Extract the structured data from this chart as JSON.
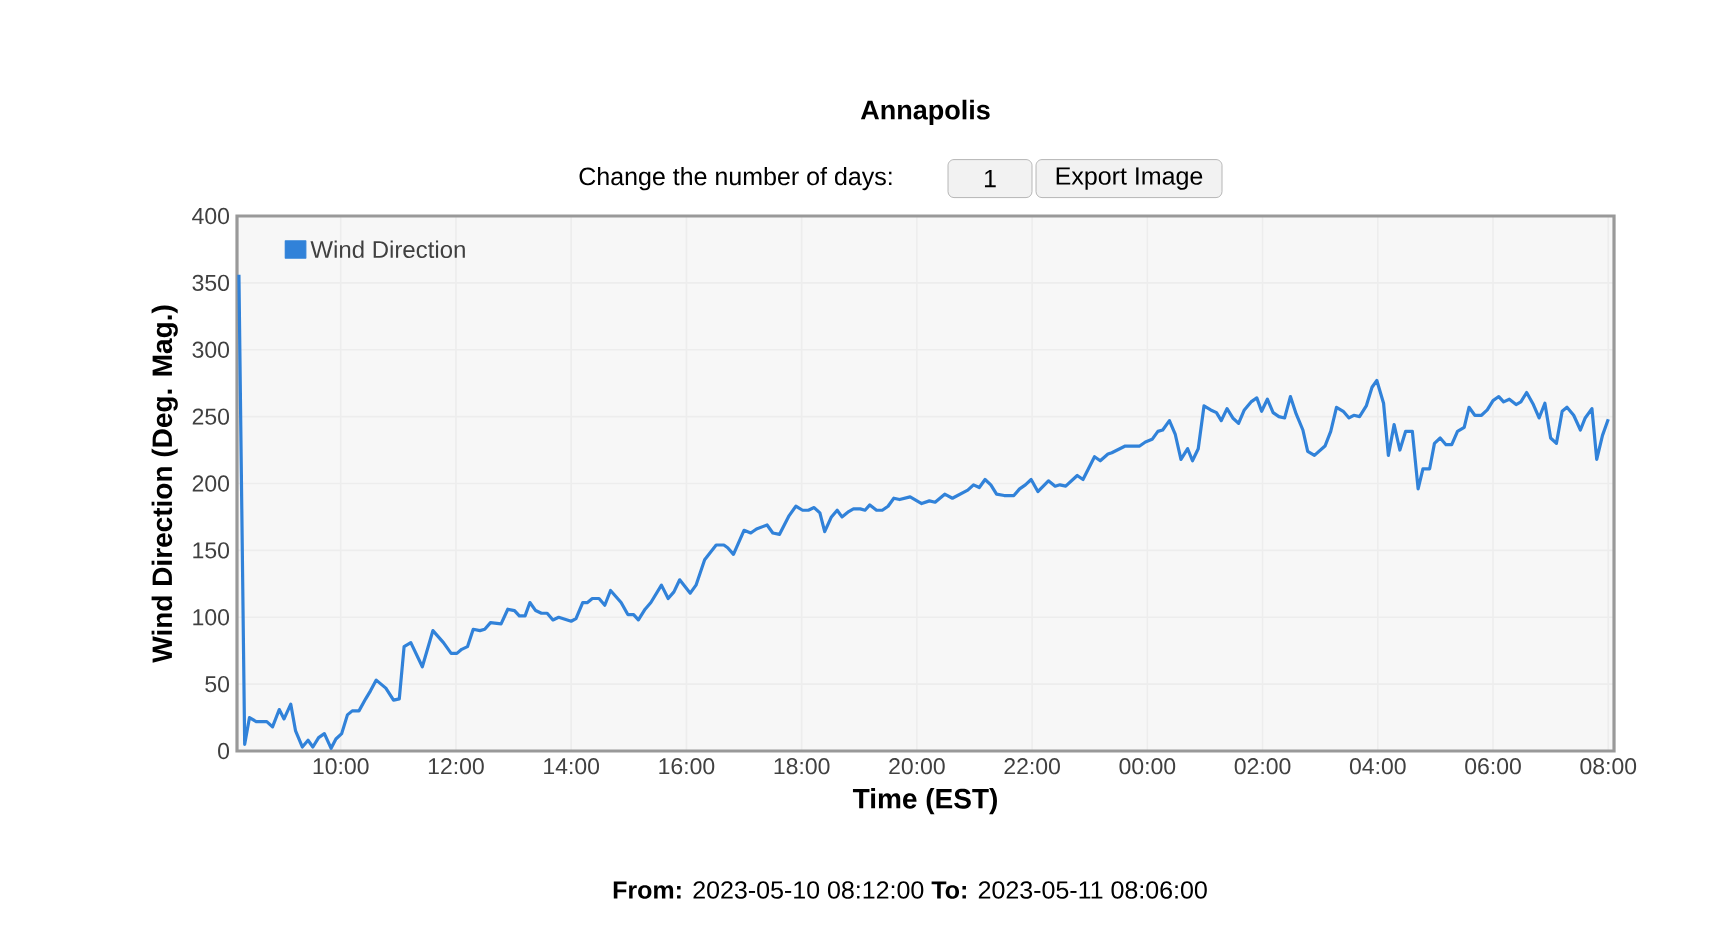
{
  "chart_data": {
    "type": "line",
    "title": "Annapolis",
    "xlabel": "Time (EST)",
    "ylabel": "Wind Direction (Deg. Mag.)",
    "annotations": [
      "Change the number of days:",
      "1",
      "Export Image",
      "**From:** 2023-05-10 08:12:00 **To:** 2023-05-11 08:06:00"
    ],
    "x": [
      "2023-05-10T08:14",
      "2023-05-10T08:20",
      "2023-05-10T08:25",
      "2023-05-10T08:32",
      "2023-05-10T08:43",
      "2023-05-10T08:49",
      "2023-05-10T08:56",
      "2023-05-10T09:01",
      "2023-05-10T09:08",
      "2023-05-10T09:13",
      "2023-05-10T09:20",
      "2023-05-10T09:26",
      "2023-05-10T09:31",
      "2023-05-10T09:37",
      "2023-05-10T09:43",
      "2023-05-10T09:50",
      "2023-05-10T09:55",
      "2023-05-10T10:01",
      "2023-05-10T10:07",
      "2023-05-10T10:12",
      "2023-05-10T10:19",
      "2023-05-10T10:26",
      "2023-05-10T10:31",
      "2023-05-10T10:37",
      "2023-05-10T10:47",
      "2023-05-10T10:55",
      "2023-05-10T11:01",
      "2023-05-10T11:06",
      "2023-05-10T11:13",
      "2023-05-10T11:25",
      "2023-05-10T11:36",
      "2023-05-10T11:47",
      "2023-05-10T11:55",
      "2023-05-10T12:01",
      "2023-05-10T12:06",
      "2023-05-10T12:12",
      "2023-05-10T12:18",
      "2023-05-10T12:25",
      "2023-05-10T12:30",
      "2023-05-10T12:36",
      "2023-05-10T12:47",
      "2023-05-10T12:54",
      "2023-05-10T13:01",
      "2023-05-10T13:06",
      "2023-05-10T13:12",
      "2023-05-10T13:17",
      "2023-05-10T13:23",
      "2023-05-10T13:29",
      "2023-05-10T13:35",
      "2023-05-10T13:41",
      "2023-05-10T13:47",
      "2023-05-10T14:00",
      "2023-05-10T14:05",
      "2023-05-10T14:12",
      "2023-05-10T14:17",
      "2023-05-10T14:22",
      "2023-05-10T14:29",
      "2023-05-10T14:35",
      "2023-05-10T14:41",
      "2023-05-10T14:52",
      "2023-05-10T14:59",
      "2023-05-10T15:05",
      "2023-05-10T15:10",
      "2023-05-10T15:17",
      "2023-05-10T15:23",
      "2023-05-10T15:34",
      "2023-05-10T15:41",
      "2023-05-10T15:47",
      "2023-05-10T15:53",
      "2023-05-10T16:04",
      "2023-05-10T16:10",
      "2023-05-10T16:19",
      "2023-05-10T16:31",
      "2023-05-10T16:39",
      "2023-05-10T16:43",
      "2023-05-10T16:49",
      "2023-05-10T17:00",
      "2023-05-10T17:07",
      "2023-05-10T17:13",
      "2023-05-10T17:24",
      "2023-05-10T17:30",
      "2023-05-10T17:37",
      "2023-05-10T17:47",
      "2023-05-10T17:54",
      "2023-05-10T18:01",
      "2023-05-10T18:07",
      "2023-05-10T18:13",
      "2023-05-10T18:19",
      "2023-05-10T18:24",
      "2023-05-10T18:31",
      "2023-05-10T18:37",
      "2023-05-10T18:42",
      "2023-05-10T18:49",
      "2023-05-10T18:54",
      "2023-05-10T19:01",
      "2023-05-10T19:06",
      "2023-05-10T19:11",
      "2023-05-10T19:18",
      "2023-05-10T19:24",
      "2023-05-10T19:30",
      "2023-05-10T19:36",
      "2023-05-10T19:42",
      "2023-05-10T19:53",
      "2023-05-10T20:05",
      "2023-05-10T20:13",
      "2023-05-10T20:19",
      "2023-05-10T20:29",
      "2023-05-10T20:37",
      "2023-05-10T20:53",
      "2023-05-10T20:59",
      "2023-05-10T21:05",
      "2023-05-10T21:11",
      "2023-05-10T21:17",
      "2023-05-10T21:23",
      "2023-05-10T21:31",
      "2023-05-10T21:41",
      "2023-05-10T21:47",
      "2023-05-10T21:53",
      "2023-05-10T21:59",
      "2023-05-10T22:06",
      "2023-05-10T22:17",
      "2023-05-10T22:24",
      "2023-05-10T22:29",
      "2023-05-10T22:35",
      "2023-05-10T22:47",
      "2023-05-10T22:53",
      "2023-05-10T23:05",
      "2023-05-10T23:11",
      "2023-05-10T23:19",
      "2023-05-10T23:23",
      "2023-05-10T23:37",
      "2023-05-10T23:52",
      "2023-05-10T23:58",
      "2023-05-11T00:05",
      "2023-05-11T00:11",
      "2023-05-11T00:16",
      "2023-05-11T00:23",
      "2023-05-11T00:29",
      "2023-05-11T00:35",
      "2023-05-11T00:42",
      "2023-05-11T00:47",
      "2023-05-11T00:53",
      "2023-05-11T00:59",
      "2023-05-11T01:06",
      "2023-05-11T01:12",
      "2023-05-11T01:17",
      "2023-05-11T01:23",
      "2023-05-11T01:29",
      "2023-05-11T01:35",
      "2023-05-11T01:41",
      "2023-05-11T01:48",
      "2023-05-11T01:54",
      "2023-05-11T01:59",
      "2023-05-11T02:05",
      "2023-05-11T02:11",
      "2023-05-11T02:17",
      "2023-05-11T02:23",
      "2023-05-11T02:29",
      "2023-05-11T02:35",
      "2023-05-11T02:42",
      "2023-05-11T02:47",
      "2023-05-11T02:54",
      "2023-05-11T03:05",
      "2023-05-11T03:11",
      "2023-05-11T03:17",
      "2023-05-11T03:24",
      "2023-05-11T03:30",
      "2023-05-11T03:35",
      "2023-05-11T03:41",
      "2023-05-11T03:48",
      "2023-05-11T03:54",
      "2023-05-11T03:59",
      "2023-05-11T04:06",
      "2023-05-11T04:11",
      "2023-05-11T04:17",
      "2023-05-11T04:23",
      "2023-05-11T04:29",
      "2023-05-11T04:36",
      "2023-05-11T04:42",
      "2023-05-11T04:47",
      "2023-05-11T04:54",
      "2023-05-11T04:59",
      "2023-05-11T05:05",
      "2023-05-11T05:11",
      "2023-05-11T05:17",
      "2023-05-11T05:23",
      "2023-05-11T05:30",
      "2023-05-11T05:35",
      "2023-05-11T05:41",
      "2023-05-11T05:48",
      "2023-05-11T05:54",
      "2023-05-11T06:00",
      "2023-05-11T06:06",
      "2023-05-11T06:11",
      "2023-05-11T06:17",
      "2023-05-11T06:24",
      "2023-05-11T06:29",
      "2023-05-11T06:35",
      "2023-05-11T06:42",
      "2023-05-11T06:48",
      "2023-05-11T06:54",
      "2023-05-11T07:00",
      "2023-05-11T07:06",
      "2023-05-11T07:12",
      "2023-05-11T07:17",
      "2023-05-11T07:24",
      "2023-05-11T07:31",
      "2023-05-11T07:36",
      "2023-05-11T07:43",
      "2023-05-11T07:48",
      "2023-05-11T07:54",
      "2023-05-11T08:00"
    ],
    "series": [
      {
        "name": "Wind Direction",
        "color": "#3182d9",
        "values": [
          356,
          5,
          25,
          22,
          22,
          18,
          31,
          24,
          35,
          15,
          3,
          8,
          3,
          10,
          13,
          2,
          9,
          13,
          27,
          30,
          30,
          39,
          45,
          53,
          47,
          38,
          39,
          78,
          81,
          63,
          90,
          81,
          73,
          73,
          76,
          78,
          91,
          90,
          91,
          96,
          95,
          106,
          105,
          101,
          101,
          111,
          105,
          103,
          103,
          98,
          100,
          97,
          99,
          111,
          111,
          114,
          114,
          109,
          120,
          111,
          102,
          102,
          98,
          106,
          111,
          124,
          114,
          119,
          128,
          118,
          124,
          143,
          154,
          154,
          152,
          147,
          165,
          163,
          166,
          169,
          163,
          162,
          176,
          183,
          180,
          180,
          182,
          178,
          164,
          175,
          180,
          175,
          179,
          181,
          181,
          180,
          184,
          180,
          180,
          183,
          189,
          188,
          190,
          185,
          187,
          186,
          192,
          189,
          195,
          199,
          197,
          203,
          199,
          192,
          191,
          191,
          196,
          199,
          203,
          194,
          202,
          198,
          199,
          198,
          206,
          203,
          220,
          217,
          222,
          223,
          228,
          228,
          231,
          233,
          239,
          240,
          247,
          237,
          218,
          226,
          217,
          226,
          258,
          255,
          253,
          247,
          256,
          249,
          245,
          255,
          261,
          264,
          254,
          263,
          253,
          250,
          249,
          265,
          252,
          240,
          224,
          221,
          228,
          239,
          257,
          254,
          249,
          251,
          250,
          258,
          272,
          277,
          260,
          221,
          244,
          225,
          239,
          239,
          196,
          211,
          211,
          230,
          234,
          229,
          229,
          239,
          242,
          257,
          251,
          251,
          255,
          262,
          265,
          261,
          263,
          259,
          261,
          268,
          259,
          249,
          260,
          234,
          230,
          254,
          257,
          251,
          240,
          249,
          256,
          218,
          236,
          248
        ]
      }
    ],
    "xlim": [
      "2023-05-10T08:12",
      "2023-05-11T08:06"
    ],
    "ylim": [
      0,
      400
    ],
    "xticks": [
      {
        "value": "2023-05-10T10:00",
        "label": "10:00"
      },
      {
        "value": "2023-05-10T12:00",
        "label": "12:00"
      },
      {
        "value": "2023-05-10T14:00",
        "label": "14:00"
      },
      {
        "value": "2023-05-10T16:00",
        "label": "16:00"
      },
      {
        "value": "2023-05-10T18:00",
        "label": "18:00"
      },
      {
        "value": "2023-05-10T20:00",
        "label": "20:00"
      },
      {
        "value": "2023-05-10T22:00",
        "label": "22:00"
      },
      {
        "value": "2023-05-11T00:00",
        "label": "00:00"
      },
      {
        "value": "2023-05-11T02:00",
        "label": "02:00"
      },
      {
        "value": "2023-05-11T04:00",
        "label": "04:00"
      },
      {
        "value": "2023-05-11T06:00",
        "label": "06:00"
      },
      {
        "value": "2023-05-11T08:00",
        "label": "08:00"
      }
    ],
    "yticks": [
      0,
      50,
      100,
      150,
      200,
      250,
      300,
      350,
      400
    ],
    "grid": true,
    "legend": "top left"
  }
}
